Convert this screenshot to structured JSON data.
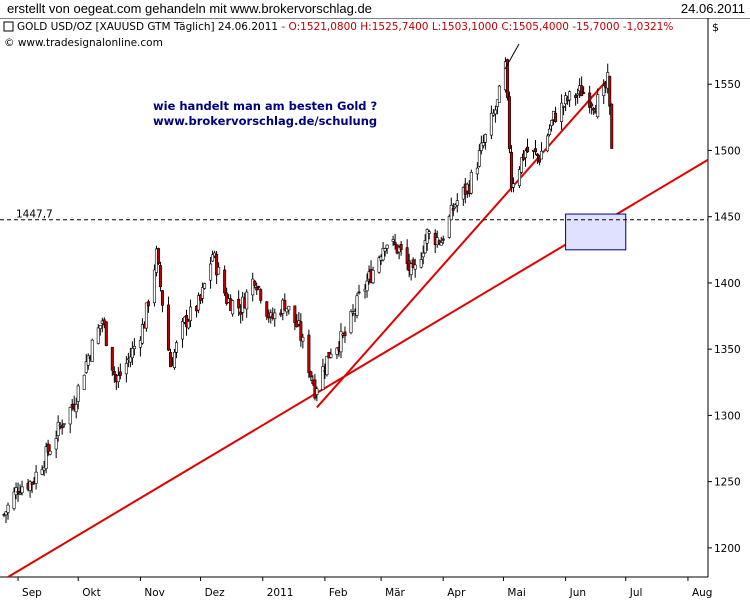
{
  "header": {
    "left": "erstellt von oegeat.com gehandeln mit www.brokervorschlag.de",
    "date": "24.06.2011"
  },
  "info": {
    "symbol_label": "GOLD USD/OZ [XAUUSD GTM  Täglich] 24.06.2011",
    "ohlc": "- O:1521,0800 H:1525,7400 L:1503,1000 C:1505,4000 -15,7000 -1,0321%",
    "copyright": "© www.tradesignalonline.com",
    "currency": "$"
  },
  "annotation": {
    "line1": "wie handelt man am besten Gold ?",
    "line2": "www.brokervorschlag.de/schulung"
  },
  "colors": {
    "up_candle": "#ffffff",
    "down_candle": "#c00000",
    "trendline": "#e00000",
    "text_annotation": "#000080",
    "ohlc_text": "#c00000",
    "box_fill": "#e0e0ff",
    "box_stroke": "#000080"
  },
  "chart_data": {
    "type": "candlestick",
    "y_ticks": [
      1200,
      1250,
      1300,
      1350,
      1400,
      1450,
      1500,
      1550
    ],
    "y_range": [
      1178,
      1600
    ],
    "x_tick_labels": [
      "Sep",
      "Okt",
      "Nov",
      "Dez",
      "2011",
      "Feb",
      "Mär",
      "Apr",
      "Mai",
      "Jun",
      "Jul",
      "Aug"
    ],
    "x_ticks": [
      "2010-09-01",
      "2010-10-01",
      "2010-11-01",
      "2010-12-01",
      "2011-01-01",
      "2011-02-01",
      "2011-03-01",
      "2011-04-01",
      "2011-05-01",
      "2011-06-01",
      "2011-07-01",
      "2011-08-01"
    ],
    "x_range": [
      "2010-08-23",
      "2011-08-11"
    ],
    "closes_approx": [
      [
        "2010-08-25",
        1225
      ],
      [
        "2010-09-01",
        1246
      ],
      [
        "2010-09-08",
        1250
      ],
      [
        "2010-09-15",
        1270
      ],
      [
        "2010-09-22",
        1292
      ],
      [
        "2010-09-29",
        1310
      ],
      [
        "2010-10-06",
        1345
      ],
      [
        "2010-10-13",
        1372
      ],
      [
        "2010-10-20",
        1325
      ],
      [
        "2010-10-27",
        1345
      ],
      [
        "2010-11-03",
        1370
      ],
      [
        "2010-11-09",
        1421
      ],
      [
        "2010-11-16",
        1338
      ],
      [
        "2010-11-23",
        1370
      ],
      [
        "2010-12-01",
        1386
      ],
      [
        "2010-12-07",
        1422
      ],
      [
        "2010-12-14",
        1388
      ],
      [
        "2010-12-21",
        1381
      ],
      [
        "2010-12-28",
        1405
      ],
      [
        "2011-01-05",
        1372
      ],
      [
        "2011-01-12",
        1385
      ],
      [
        "2011-01-19",
        1365
      ],
      [
        "2011-01-27",
        1320
      ],
      [
        "2011-02-04",
        1350
      ],
      [
        "2011-02-11",
        1360
      ],
      [
        "2011-02-18",
        1388
      ],
      [
        "2011-02-25",
        1410
      ],
      [
        "2011-03-03",
        1432
      ],
      [
        "2011-03-10",
        1425
      ],
      [
        "2011-03-17",
        1405
      ],
      [
        "2011-03-24",
        1437
      ],
      [
        "2011-03-31",
        1432
      ],
      [
        "2011-04-07",
        1460
      ],
      [
        "2011-04-14",
        1474
      ],
      [
        "2011-04-21",
        1505
      ],
      [
        "2011-04-28",
        1535
      ],
      [
        "2011-05-02",
        1563
      ],
      [
        "2011-05-05",
        1475
      ],
      [
        "2011-05-12",
        1500
      ],
      [
        "2011-05-19",
        1495
      ],
      [
        "2011-05-26",
        1525
      ],
      [
        "2011-06-02",
        1538
      ],
      [
        "2011-06-09",
        1545
      ],
      [
        "2011-06-16",
        1535
      ],
      [
        "2011-06-20",
        1542
      ],
      [
        "2011-06-22",
        1552
      ],
      [
        "2011-06-24",
        1505
      ]
    ],
    "horizontal_line": {
      "value": 1447.7,
      "label": "1447,7",
      "style": "dashed"
    },
    "trendlines": [
      {
        "from": [
          "2011-01-28",
          1306
        ],
        "to": [
          "2011-06-21",
          1552
        ]
      },
      {
        "from": [
          "2010-08-27",
          1178
        ],
        "to": [
          "2011-08-11",
          1493
        ]
      }
    ],
    "highlight_box": {
      "x": [
        "2011-06-01",
        "2011-07-01"
      ],
      "y": [
        1425,
        1452
      ]
    }
  }
}
